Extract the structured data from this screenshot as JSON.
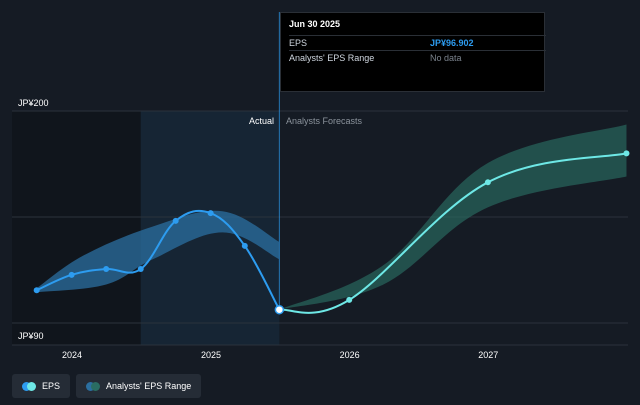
{
  "chart_data": {
    "type": "line",
    "ylim": [
      90,
      200
    ],
    "y_ticks": [
      "JP¥200",
      "JP¥90"
    ],
    "x_ticks": [
      "2024",
      "2025",
      "2026",
      "2027"
    ],
    "section_labels": {
      "actual": "Actual",
      "forecast": "Analysts Forecasts"
    },
    "series": [
      {
        "name": "EPS",
        "color": "#2d9cf0",
        "points": [
          [
            "2023-09-30",
            107
          ],
          [
            "2023-12-31",
            115
          ],
          [
            "2024-03-31",
            118
          ],
          [
            "2024-06-30",
            118
          ],
          [
            "2024-09-30",
            143
          ],
          [
            "2024-12-31",
            147
          ],
          [
            "2025-03-31",
            130
          ],
          [
            "2025-06-30",
            96.9
          ]
        ]
      },
      {
        "name": "EPS",
        "color": "#6ee8e6",
        "points": [
          [
            "2025-06-30",
            96.9
          ],
          [
            "2025-12-31",
            102
          ],
          [
            "2026-12-31",
            163
          ],
          [
            "2027-12-31",
            178
          ]
        ]
      }
    ],
    "ranges": [
      {
        "name": "Analysts' EPS Range",
        "color": "#2b6fa0",
        "upper": [
          [
            "2023-09-30",
            108
          ],
          [
            "2024-01-31",
            125
          ],
          [
            "2024-07-31",
            140
          ],
          [
            "2025-01-31",
            148
          ],
          [
            "2025-06-30",
            132
          ]
        ],
        "lower": [
          [
            "2023-09-30",
            106
          ],
          [
            "2024-03-31",
            110
          ],
          [
            "2024-07-31",
            123
          ],
          [
            "2025-01-31",
            137
          ],
          [
            "2025-06-30",
            123
          ]
        ]
      },
      {
        "name": "Analysts' EPS Range",
        "color": "#2a6d62",
        "upper": [
          [
            "2025-06-30",
            96.9
          ],
          [
            "2026-03-31",
            120
          ],
          [
            "2026-12-31",
            173
          ],
          [
            "2027-12-31",
            193
          ]
        ],
        "lower": [
          [
            "2025-06-30",
            96.9
          ],
          [
            "2026-03-31",
            110
          ],
          [
            "2026-12-31",
            150
          ],
          [
            "2027-12-31",
            166
          ]
        ]
      }
    ],
    "highlight_period": [
      "2024-06-30",
      "2025-06-30"
    ]
  },
  "tooltip": {
    "date": "Jun 30 2025",
    "rows": [
      {
        "label": "EPS",
        "value": "JP¥96.902"
      },
      {
        "label": "Analysts' EPS Range",
        "value": "No data"
      }
    ]
  },
  "legend": {
    "items": [
      {
        "label": "EPS",
        "colors": [
          "#2d9cf0",
          "#6ee8e6"
        ]
      },
      {
        "label": "Analysts' EPS Range",
        "colors": [
          "#2b6fa0",
          "#2a6d62"
        ]
      }
    ]
  }
}
